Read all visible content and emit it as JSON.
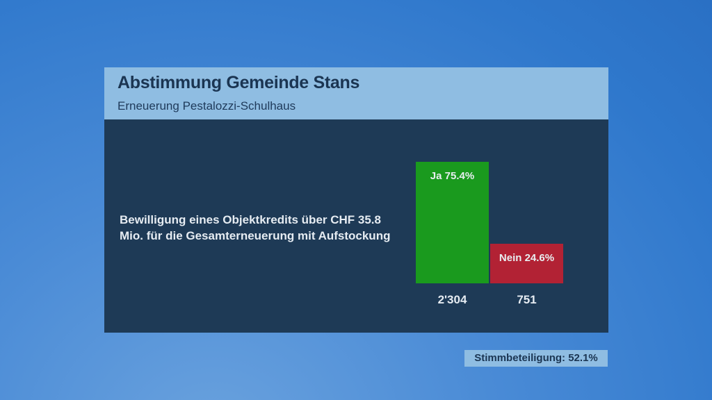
{
  "header": {
    "title": "Abstimmung Gemeinde Stans",
    "subtitle": "Erneuerung Pestalozzi-Schulhaus"
  },
  "question": "Bewilligung eines Objektkredits über CHF 35.8 Mio. für die Gesamterneuerung mit Aufstockung",
  "turnout": "Stimmbeteiligung: 52.1%",
  "chart_data": {
    "type": "bar",
    "categories": [
      "Ja",
      "Nein"
    ],
    "values": [
      75.4,
      24.6
    ],
    "counts": [
      "2'304",
      "751"
    ],
    "labels": [
      "Ja 75.4%",
      "Nein 24.6%"
    ],
    "colors": [
      "#1a9a1e",
      "#b22234"
    ],
    "ylim": [
      0,
      100
    ],
    "title": "Abstimmung Gemeinde Stans"
  }
}
